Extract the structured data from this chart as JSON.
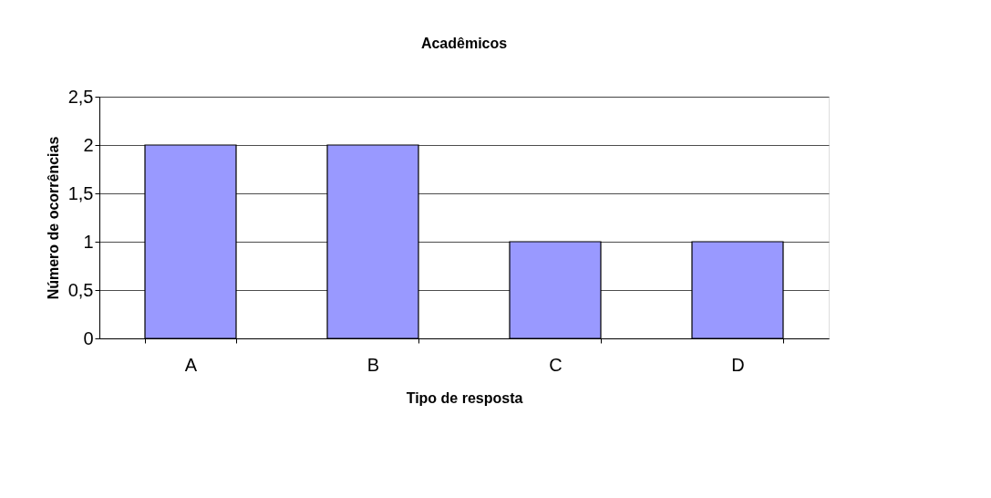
{
  "chart_data": {
    "type": "bar",
    "title": "Acadêmicos",
    "xlabel": "Tipo de resposta",
    "ylabel": "Número de ocorrências",
    "categories": [
      "A",
      "B",
      "C",
      "D"
    ],
    "values": [
      2,
      2,
      1,
      1
    ],
    "color": "#9999ff",
    "ylim": [
      0,
      2.5
    ],
    "yticks": [
      0,
      {
        "value": 0.5,
        "label": "0,5"
      },
      1,
      {
        "value": 1.5,
        "label": "1,5"
      },
      2,
      {
        "value": 2.5,
        "label": "2,5"
      }
    ],
    "grid": "y"
  }
}
